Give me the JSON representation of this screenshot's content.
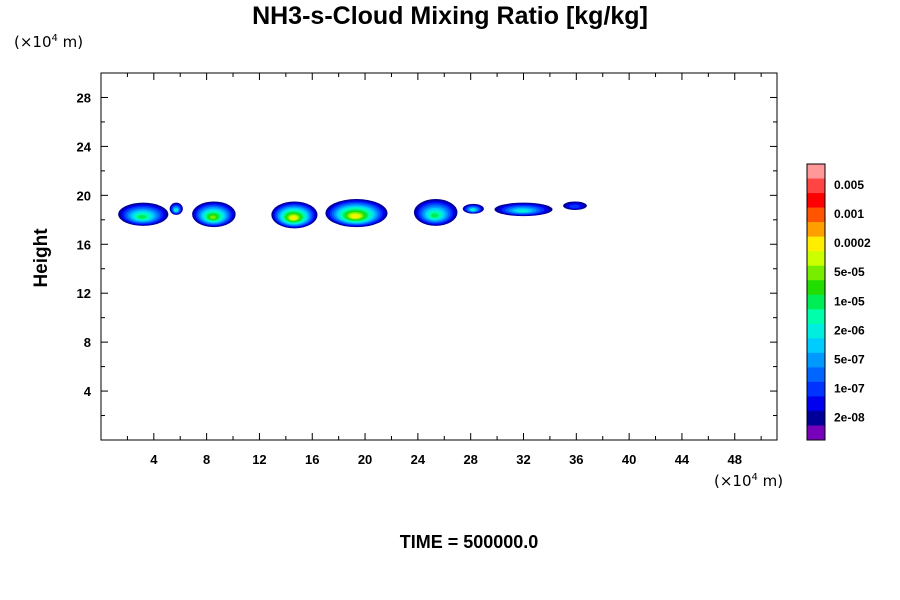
{
  "title": "NH3-s-Cloud Mixing Ratio [kg/kg]",
  "y_unit": {
    "prefix": "(×10",
    "exp": "4",
    "suffix": " m)"
  },
  "x_unit": {
    "prefix": "(×10",
    "exp": "4",
    "suffix": " m)"
  },
  "ylabel": "Height",
  "time_label": "TIME = 500000.0",
  "chart_data": {
    "type": "heatmap",
    "title": "NH3-s-Cloud Mixing Ratio [kg/kg]",
    "xlabel": "",
    "ylabel": "Height",
    "x_unit": "×10^4 m",
    "y_unit": "×10^4 m",
    "xlim": [
      0,
      51.2
    ],
    "ylim": [
      0,
      30
    ],
    "x_ticks": [
      4,
      8,
      12,
      16,
      20,
      24,
      28,
      32,
      36,
      40,
      44,
      48
    ],
    "y_ticks": [
      4,
      8,
      12,
      16,
      20,
      24,
      28
    ],
    "colorbar": {
      "labels": [
        "0.005",
        "0.001",
        "0.0002",
        "5e-05",
        "1e-05",
        "2e-06",
        "5e-07",
        "1e-07",
        "2e-08"
      ],
      "colors": [
        "#ff9999",
        "#ff4444",
        "#ff0000",
        "#ff5500",
        "#ffa000",
        "#ffee00",
        "#ccff00",
        "#77ee00",
        "#22dd00",
        "#00ee55",
        "#00ffaa",
        "#00eedd",
        "#00ccff",
        "#0099ff",
        "#0066ff",
        "#0033ff",
        "#0000ee",
        "#000099",
        "#7700bb"
      ]
    },
    "cloud_regions": [
      {
        "x_range": [
          1.3,
          5.1
        ],
        "y_range": [
          17.5,
          19.4
        ],
        "max_level": "1e-05"
      },
      {
        "x_range": [
          5.2,
          6.2
        ],
        "y_range": [
          18.4,
          19.4
        ],
        "max_level": "2e-06"
      },
      {
        "x_range": [
          6.9,
          10.2
        ],
        "y_range": [
          17.4,
          19.5
        ],
        "max_level": "5e-05"
      },
      {
        "x_range": [
          12.9,
          16.4
        ],
        "y_range": [
          17.3,
          19.5
        ],
        "max_level": "0.0002"
      },
      {
        "x_range": [
          17.0,
          21.7
        ],
        "y_range": [
          17.4,
          19.7
        ],
        "max_level": "0.0002"
      },
      {
        "x_range": [
          23.7,
          27.0
        ],
        "y_range": [
          17.5,
          19.7
        ],
        "max_level": "1e-05"
      },
      {
        "x_range": [
          27.4,
          29.0
        ],
        "y_range": [
          18.5,
          19.3
        ],
        "max_level": "2e-06"
      },
      {
        "x_range": [
          29.8,
          34.2
        ],
        "y_range": [
          18.3,
          19.4
        ],
        "max_level": "2e-06"
      },
      {
        "x_range": [
          35.0,
          36.8
        ],
        "y_range": [
          18.8,
          19.5
        ],
        "max_level": "1e-07"
      }
    ],
    "grid": false,
    "legend": "right (colorbar)"
  }
}
